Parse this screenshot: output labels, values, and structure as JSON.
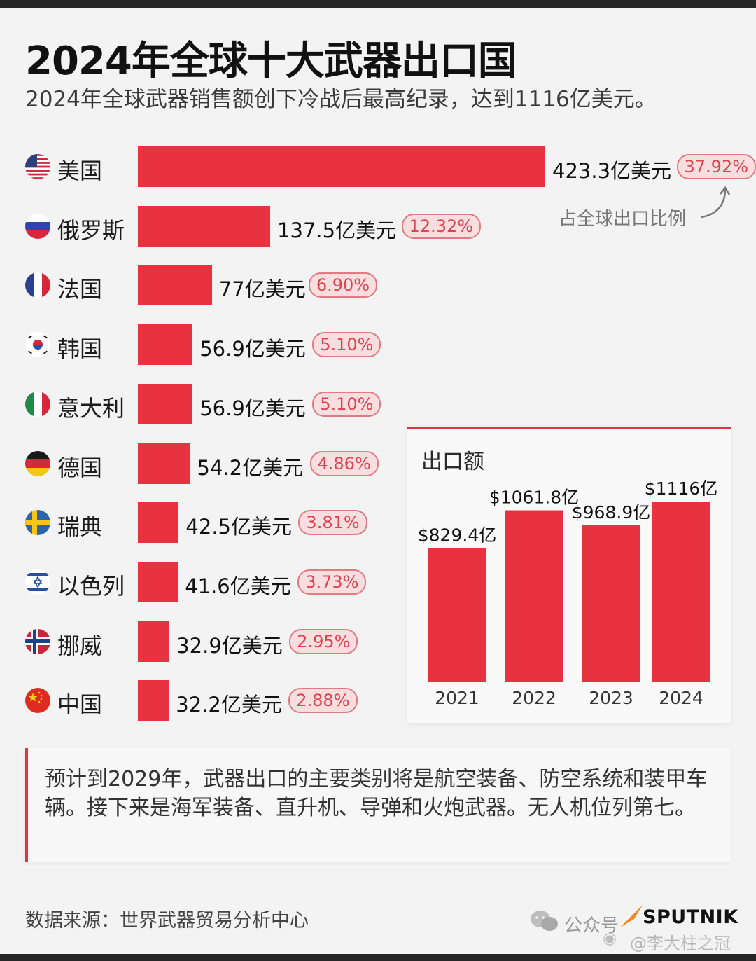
{
  "title": "2024年全球十大武器出口国",
  "subtitle": "2024年全球武器销售额创下冷战后最高纪录，达到1116亿美元。",
  "share_note": "占全球出口比例",
  "chart_data": [
    {
      "type": "bar",
      "orientation": "horizontal",
      "categories": [
        "美国",
        "俄罗斯",
        "法国",
        "韩国",
        "意大利",
        "德国",
        "瑞典",
        "以色列",
        "挪威",
        "中国"
      ],
      "values": [
        423.3,
        137.5,
        77,
        56.9,
        56.9,
        54.2,
        42.5,
        41.6,
        32.9,
        32.2
      ],
      "value_labels": [
        "423.3亿美元",
        "137.5亿美元",
        "77亿美元",
        "56.9亿美元",
        "56.9亿美元",
        "54.2亿美元",
        "42.5亿美元",
        "41.6亿美元",
        "32.9亿美元",
        "32.2亿美元"
      ],
      "shares": [
        "37.92%",
        "12.32%",
        "6.90%",
        "5.10%",
        "5.10%",
        "4.86%",
        "3.81%",
        "3.73%",
        "2.95%",
        "2.88%"
      ],
      "flags": [
        "us-flag-icon",
        "russia-flag-icon",
        "france-flag-icon",
        "korea-flag-icon",
        "italy-flag-icon",
        "germany-flag-icon",
        "sweden-flag-icon",
        "israel-flag-icon",
        "norway-flag-icon",
        "china-flag-icon"
      ],
      "unit": "亿美元",
      "xlim": [
        0,
        423.3
      ],
      "bar_color": "#e8323f"
    },
    {
      "type": "bar",
      "title": "出口额",
      "categories": [
        "2021",
        "2022",
        "2023",
        "2024"
      ],
      "values": [
        829.4,
        1061.8,
        968.9,
        1116
      ],
      "value_labels": [
        "$829.4亿",
        "$1061.8亿",
        "$968.9亿",
        "$1116亿"
      ],
      "ylim": [
        0,
        1116
      ],
      "bar_color": "#e8323f"
    }
  ],
  "note": "预计到2029年，武器出口的主要类别将是航空装备、防空系统和装甲车辆。接下来是海军装备、直升机、导弹和火炮武器。无人机位列第七。",
  "source": "数据来源：世界武器贸易分析中心",
  "watermark": {
    "wechat_label": "公众号",
    "brand": "SPUTNIK",
    "weibo_handle": "@李大柱之冠"
  },
  "colors": {
    "accent": "#e8323f",
    "pill_bg": "#f8dedf",
    "pill_text": "#e0434f"
  }
}
